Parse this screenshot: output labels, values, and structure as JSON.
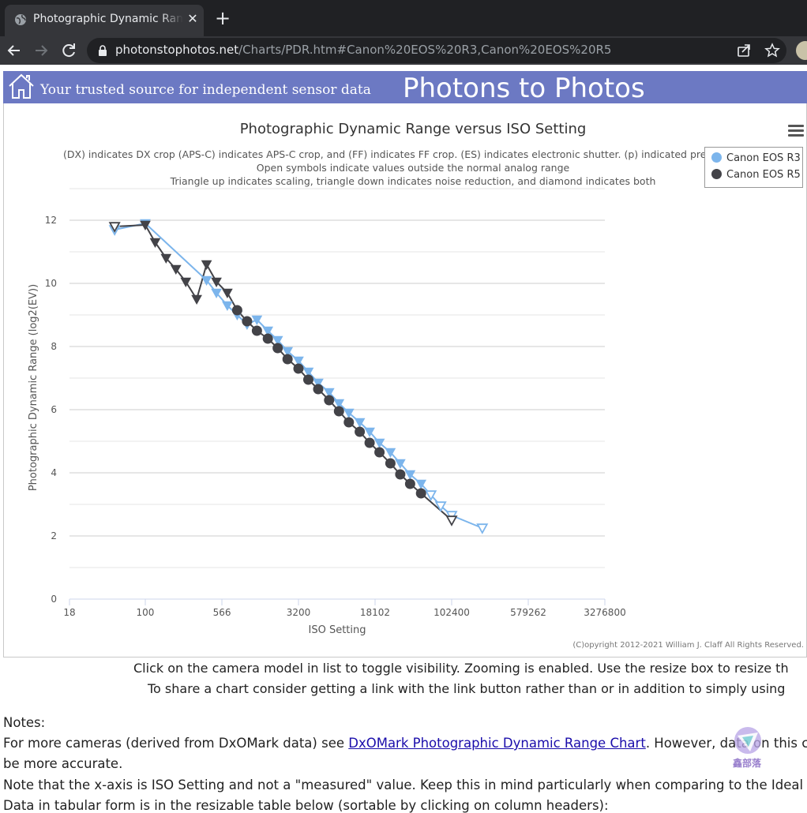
{
  "browser": {
    "tab_title": "Photographic Dynamic Range versus ISO Setting",
    "tab_close": "✕",
    "new_tab": "+",
    "url_host": "photonstophotos.net",
    "url_path": "/Charts/PDR.htm#Canon%20EOS%20R3,Canon%20EOS%20R5"
  },
  "site": {
    "tagline": "Your trusted source for independent sensor data",
    "title": "Photons to Photos"
  },
  "chart_data": {
    "type": "line",
    "title": "Photographic Dynamic Range versus ISO Setting",
    "subtitle_lines": [
      "(DX) indicates DX crop (APS-C) indicates APS-C crop, and (FF) indicates FF crop. (ES) indicates electronic shutter. (p) indicated prelim",
      "Open symbols indicate values outside the normal analog range",
      "Triangle up indicates scaling, triangle down indicates noise reduction, and diamond indicates both"
    ],
    "xlabel": "ISO Setting",
    "ylabel": "Photographic Dynamic Range (log2(EV))",
    "x_scale": "log",
    "x_ticks": [
      18,
      100,
      566,
      3200,
      18102,
      102400,
      579262,
      3276800
    ],
    "y_ticks": [
      0,
      2,
      4,
      6,
      8,
      10,
      12
    ],
    "ylim": [
      0,
      12
    ],
    "grid": true,
    "legend_position": "top-right",
    "credit": "(C)opyright 2012-2021 William J. Claff All Rights Reserved.",
    "series": [
      {
        "name": "Canon EOS R3",
        "color": "#7cb5ec",
        "points": [
          {
            "x": 50,
            "y": 11.7,
            "marker": "triangle-down-open"
          },
          {
            "x": 100,
            "y": 11.9,
            "marker": "triangle-down"
          },
          {
            "x": 400,
            "y": 10.1,
            "marker": "triangle-down"
          },
          {
            "x": 500,
            "y": 9.7,
            "marker": "triangle-down"
          },
          {
            "x": 640,
            "y": 9.3,
            "marker": "triangle-down"
          },
          {
            "x": 800,
            "y": 9.0,
            "marker": "triangle-down"
          },
          {
            "x": 1000,
            "y": 8.7,
            "marker": "triangle-down"
          },
          {
            "x": 1250,
            "y": 8.85,
            "marker": "triangle-down"
          },
          {
            "x": 1600,
            "y": 8.5,
            "marker": "triangle-down"
          },
          {
            "x": 2000,
            "y": 8.2,
            "marker": "triangle-down"
          },
          {
            "x": 2500,
            "y": 7.85,
            "marker": "triangle-down"
          },
          {
            "x": 3200,
            "y": 7.55,
            "marker": "triangle-down"
          },
          {
            "x": 4000,
            "y": 7.2,
            "marker": "triangle-down"
          },
          {
            "x": 5000,
            "y": 6.85,
            "marker": "triangle-down"
          },
          {
            "x": 6400,
            "y": 6.55,
            "marker": "triangle-down"
          },
          {
            "x": 8000,
            "y": 6.2,
            "marker": "triangle-down"
          },
          {
            "x": 10000,
            "y": 5.9,
            "marker": "triangle-down"
          },
          {
            "x": 12800,
            "y": 5.6,
            "marker": "triangle-down"
          },
          {
            "x": 16000,
            "y": 5.3,
            "marker": "triangle-down"
          },
          {
            "x": 20000,
            "y": 4.95,
            "marker": "triangle-down"
          },
          {
            "x": 25600,
            "y": 4.65,
            "marker": "triangle-down"
          },
          {
            "x": 32000,
            "y": 4.3,
            "marker": "triangle-down"
          },
          {
            "x": 40000,
            "y": 3.95,
            "marker": "triangle-down"
          },
          {
            "x": 51200,
            "y": 3.65,
            "marker": "triangle-down"
          },
          {
            "x": 64000,
            "y": 3.3,
            "marker": "triangle-down-open"
          },
          {
            "x": 80000,
            "y": 2.95,
            "marker": "triangle-down-open"
          },
          {
            "x": 102400,
            "y": 2.65,
            "marker": "triangle-down-open"
          },
          {
            "x": 204800,
            "y": 2.25,
            "marker": "triangle-down-open"
          }
        ]
      },
      {
        "name": "Canon EOS R5",
        "color": "#434348",
        "points": [
          {
            "x": 50,
            "y": 11.8,
            "marker": "triangle-down-open"
          },
          {
            "x": 100,
            "y": 11.85,
            "marker": "triangle-down"
          },
          {
            "x": 125,
            "y": 11.3,
            "marker": "triangle-down"
          },
          {
            "x": 160,
            "y": 10.8,
            "marker": "triangle-down"
          },
          {
            "x": 200,
            "y": 10.45,
            "marker": "triangle-down"
          },
          {
            "x": 250,
            "y": 10.05,
            "marker": "triangle-down"
          },
          {
            "x": 320,
            "y": 9.5,
            "marker": "triangle-down"
          },
          {
            "x": 400,
            "y": 10.6,
            "marker": "triangle-down"
          },
          {
            "x": 500,
            "y": 10.05,
            "marker": "triangle-down"
          },
          {
            "x": 640,
            "y": 9.7,
            "marker": "triangle-down"
          },
          {
            "x": 800,
            "y": 9.15,
            "marker": "circle"
          },
          {
            "x": 1000,
            "y": 8.8,
            "marker": "circle"
          },
          {
            "x": 1250,
            "y": 8.5,
            "marker": "circle"
          },
          {
            "x": 1600,
            "y": 8.25,
            "marker": "circle"
          },
          {
            "x": 2000,
            "y": 7.95,
            "marker": "circle"
          },
          {
            "x": 2500,
            "y": 7.6,
            "marker": "circle"
          },
          {
            "x": 3200,
            "y": 7.3,
            "marker": "circle"
          },
          {
            "x": 4000,
            "y": 6.95,
            "marker": "circle"
          },
          {
            "x": 5000,
            "y": 6.65,
            "marker": "circle"
          },
          {
            "x": 6400,
            "y": 6.3,
            "marker": "circle"
          },
          {
            "x": 8000,
            "y": 5.95,
            "marker": "circle"
          },
          {
            "x": 10000,
            "y": 5.6,
            "marker": "circle"
          },
          {
            "x": 12800,
            "y": 5.3,
            "marker": "circle"
          },
          {
            "x": 16000,
            "y": 4.95,
            "marker": "circle"
          },
          {
            "x": 20000,
            "y": 4.65,
            "marker": "circle"
          },
          {
            "x": 25600,
            "y": 4.3,
            "marker": "circle"
          },
          {
            "x": 32000,
            "y": 3.95,
            "marker": "circle"
          },
          {
            "x": 40000,
            "y": 3.65,
            "marker": "circle"
          },
          {
            "x": 51200,
            "y": 3.35,
            "marker": "circle"
          },
          {
            "x": 102400,
            "y": 2.5,
            "marker": "triangle-down-open"
          }
        ]
      }
    ]
  },
  "info": {
    "line1": "Click on the camera model in list to toggle visibility. Zooming is enabled. Use the resize box to resize th",
    "line2": "To share a chart consider getting a link with the link button rather than or in addition to simply using"
  },
  "notes": {
    "heading": "Notes:",
    "line1_before": "For more cameras (derived from DxOMark data) see ",
    "line1_link": "DxOMark Photographic Dynamic Range Chart",
    "line1_after": ". However, data on this ch",
    "line2": "be more accurate.",
    "line3": "Note that the x-axis is ISO Setting and not a \"measured\" value. Keep this in mind particularly when comparing to the Ideal l",
    "line4": "Data in tabular form is in the resizable table below (sortable by clicking on column headers):"
  },
  "watermark": {
    "text": "鑫部落"
  }
}
